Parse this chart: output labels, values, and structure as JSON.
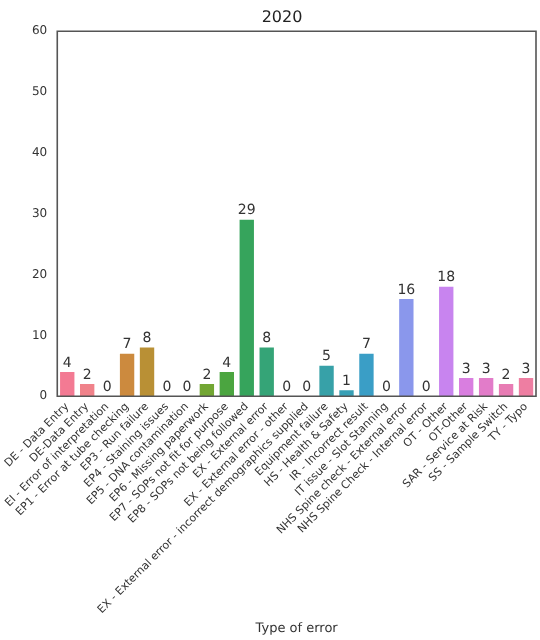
{
  "chart_data": {
    "type": "bar",
    "title": "2020",
    "xlabel": "Type of error",
    "categories": [
      "DE - Data Entry",
      "DE-Data Entry",
      "EI - Error of interpretation",
      "EP1 - Error at tube checking",
      "EP3 - Run failure",
      "EP4 - Staining issues",
      "EP5 - DNA contamination",
      "EP6 - Missing paperwork",
      "EP7 - SOPs not fit for purpose",
      "EP8 - SOPs not being followed",
      "EX - External error",
      "EX - External error - other",
      "EX - External error - incorrect demographics supplied",
      "Equipment failure",
      "HS - Health & Safety",
      "IR - Incorrect result",
      "IT issue - Slot Stanning",
      "NHS Spine check - External error",
      "NHS Spine Check - Internal error",
      "OT - Other",
      "OT-Other",
      "SAR - Service at Risk",
      "SS - Sample Switch",
      "TY - Typo"
    ],
    "values": [
      4,
      2,
      0,
      7,
      8,
      0,
      0,
      2,
      4,
      29,
      8,
      0,
      0,
      5,
      1,
      7,
      0,
      16,
      0,
      18,
      3,
      3,
      2,
      3
    ],
    "colors": [
      "#f37a93",
      "#f0828a",
      "#e08a60",
      "#cc8a3e",
      "#b99035",
      "#a69a34",
      "#8fa234",
      "#72a633",
      "#4ba540",
      "#36a45c",
      "#35a477",
      "#35a38a",
      "#36a29a",
      "#37a1a8",
      "#38a0b6",
      "#3a9ec6",
      "#5f99e0",
      "#8a97ec",
      "#a78ff0",
      "#c884ef",
      "#d97ee0",
      "#e27cc9",
      "#e87cb4",
      "#ee7ea2"
    ],
    "ylim": [
      0,
      60
    ],
    "yticks": [
      0,
      10,
      20,
      30,
      40,
      50,
      60
    ],
    "data_labels": true
  }
}
